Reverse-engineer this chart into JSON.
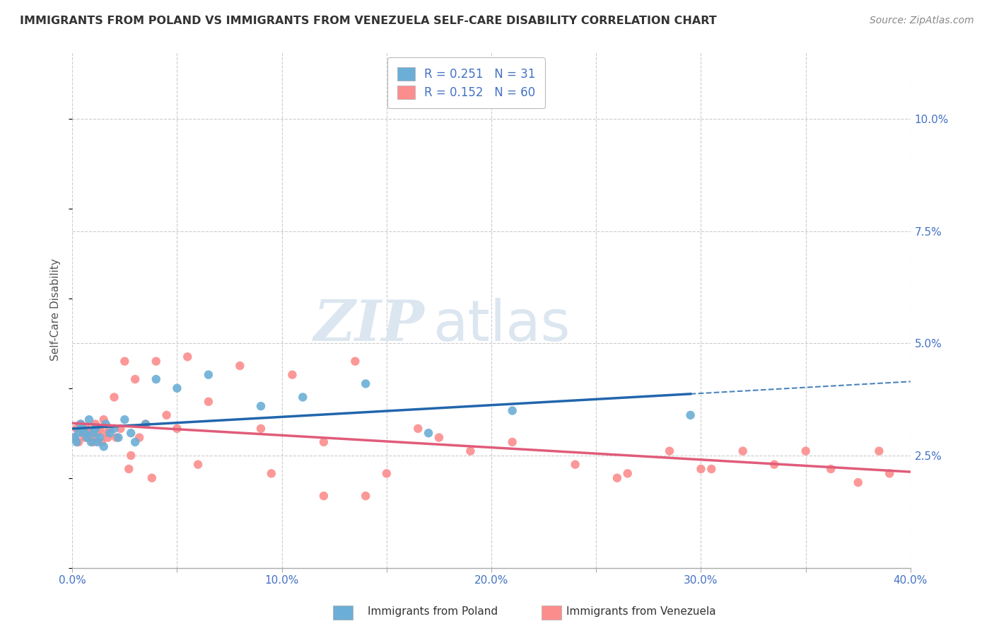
{
  "title": "IMMIGRANTS FROM POLAND VS IMMIGRANTS FROM VENEZUELA SELF-CARE DISABILITY CORRELATION CHART",
  "source": "Source: ZipAtlas.com",
  "ylabel": "Self-Care Disability",
  "xmin": 0.0,
  "xmax": 0.4,
  "ymin": 0.0,
  "ymax": 0.115,
  "yticks": [
    0.025,
    0.05,
    0.075,
    0.1
  ],
  "ytick_labels": [
    "2.5%",
    "5.0%",
    "7.5%",
    "10.0%"
  ],
  "xticks": [
    0.0,
    0.05,
    0.1,
    0.15,
    0.2,
    0.25,
    0.3,
    0.35,
    0.4
  ],
  "xtick_labels": [
    "0.0%",
    "",
    "10.0%",
    "",
    "20.0%",
    "",
    "30.0%",
    "",
    "40.0%"
  ],
  "poland_color": "#6baed6",
  "venezuela_color": "#fc8d8d",
  "poland_line_color": "#2166ac",
  "venezuela_line_color": "#e05c7a",
  "poland_R": 0.251,
  "poland_N": 31,
  "venezuela_R": 0.152,
  "venezuela_N": 60,
  "poland_scatter_x": [
    0.001,
    0.002,
    0.003,
    0.004,
    0.005,
    0.006,
    0.007,
    0.008,
    0.009,
    0.01,
    0.011,
    0.012,
    0.013,
    0.015,
    0.016,
    0.018,
    0.02,
    0.022,
    0.025,
    0.028,
    0.03,
    0.035,
    0.04,
    0.05,
    0.065,
    0.09,
    0.11,
    0.14,
    0.17,
    0.21,
    0.295
  ],
  "poland_scatter_y": [
    0.029,
    0.028,
    0.03,
    0.032,
    0.031,
    0.03,
    0.029,
    0.033,
    0.028,
    0.03,
    0.031,
    0.028,
    0.029,
    0.027,
    0.032,
    0.03,
    0.031,
    0.029,
    0.033,
    0.03,
    0.028,
    0.032,
    0.042,
    0.04,
    0.043,
    0.036,
    0.038,
    0.041,
    0.03,
    0.035,
    0.034
  ],
  "venezuela_scatter_x": [
    0.001,
    0.002,
    0.003,
    0.004,
    0.005,
    0.006,
    0.007,
    0.008,
    0.009,
    0.01,
    0.011,
    0.012,
    0.013,
    0.014,
    0.015,
    0.016,
    0.017,
    0.018,
    0.02,
    0.021,
    0.023,
    0.025,
    0.027,
    0.028,
    0.03,
    0.032,
    0.035,
    0.038,
    0.04,
    0.045,
    0.05,
    0.055,
    0.06,
    0.065,
    0.08,
    0.09,
    0.105,
    0.12,
    0.135,
    0.15,
    0.165,
    0.175,
    0.19,
    0.21,
    0.24,
    0.265,
    0.285,
    0.305,
    0.32,
    0.335,
    0.35,
    0.362,
    0.375,
    0.385,
    0.39,
    0.3,
    0.26,
    0.14,
    0.12,
    0.095
  ],
  "venezuela_scatter_y": [
    0.029,
    0.031,
    0.028,
    0.032,
    0.03,
    0.029,
    0.031,
    0.03,
    0.029,
    0.028,
    0.032,
    0.03,
    0.031,
    0.028,
    0.033,
    0.03,
    0.029,
    0.031,
    0.038,
    0.029,
    0.031,
    0.046,
    0.022,
    0.025,
    0.042,
    0.029,
    0.032,
    0.02,
    0.046,
    0.034,
    0.031,
    0.047,
    0.023,
    0.037,
    0.045,
    0.031,
    0.043,
    0.028,
    0.046,
    0.021,
    0.031,
    0.029,
    0.026,
    0.028,
    0.023,
    0.021,
    0.026,
    0.022,
    0.026,
    0.023,
    0.026,
    0.022,
    0.019,
    0.026,
    0.021,
    0.022,
    0.02,
    0.016,
    0.016,
    0.021
  ],
  "background_color": "#ffffff",
  "grid_color": "#cccccc",
  "watermark_zip": "ZIP",
  "watermark_atlas": "atlas",
  "watermark_color": "#dce6f0"
}
